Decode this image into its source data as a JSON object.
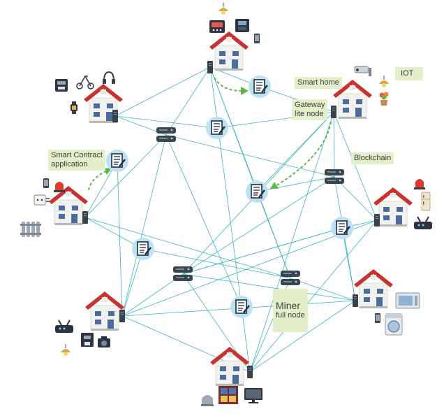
{
  "labels": {
    "smart_home": "Smart home",
    "iot": "IOT",
    "gateway": "Gateway\nlite node",
    "blockchain": "Blockchain",
    "smart_contract": "Smart Contract\napplication",
    "miner": "Miner",
    "miner_sub": "full node"
  },
  "colors": {
    "link": "#3bb3c3",
    "roof": "#c8322f",
    "house_wall": "#f1f1ef",
    "window": "#4c6d9c",
    "server": "#3b4550",
    "contract_bg": "#bde1f4",
    "arrow": "#5cb84a",
    "label_bg": "#e3efc9"
  },
  "icons": [
    "house-icon",
    "smartphone-icon",
    "server-icon",
    "smart-contract-icon",
    "ceiling-lamp-icon",
    "oven-icon",
    "scale-icon",
    "treadmill-icon",
    "headphones-icon",
    "washing-machine-icon",
    "fridge-icon",
    "camera-icon",
    "security-camera-icon",
    "alarm-light-icon",
    "radiator-icon",
    "plug-icon",
    "printer-icon",
    "coffee-machine-icon",
    "monitor-icon",
    "plant-icon",
    "router-icon",
    "microwave-icon",
    "smartwatch-icon",
    "window-icon"
  ]
}
